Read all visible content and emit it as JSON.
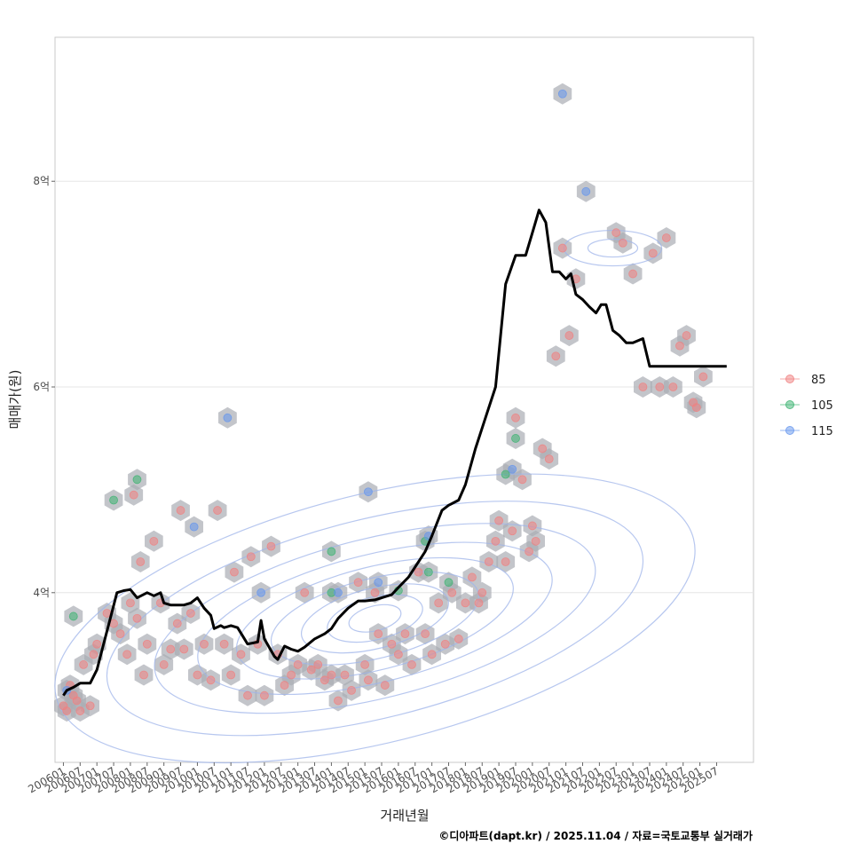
{
  "chart_data": {
    "type": "scatter",
    "title": "",
    "xlabel": "거래년월",
    "ylabel": "매매가(원)",
    "caption": "©디아파트(dapt.kr) / 2025.11.04 / 자료=국토교통부 실거래가",
    "xlim": [
      2005.75,
      2026.6
    ],
    "ylim": [
      2.35,
      9.4
    ],
    "y_ticks": [
      {
        "value": 4,
        "label": "4억"
      },
      {
        "value": 6,
        "label": "6억"
      },
      {
        "value": 8,
        "label": "8억"
      }
    ],
    "x_ticks": [
      "200601",
      "200607",
      "200701",
      "200707",
      "200801",
      "200807",
      "200901",
      "200907",
      "201001",
      "201007",
      "201101",
      "201107",
      "201201",
      "201207",
      "201301",
      "201307",
      "201401",
      "201407",
      "201501",
      "201507",
      "201601",
      "201607",
      "201701",
      "201707",
      "201801",
      "201807",
      "201901",
      "201907",
      "202001",
      "202007",
      "202101",
      "202107",
      "202201",
      "202207",
      "202301",
      "202307",
      "202401",
      "202407",
      "202501",
      "202507"
    ],
    "legend": {
      "placement": "right",
      "entries": [
        {
          "label": "85",
          "color": "#f08080"
        },
        {
          "label": "105",
          "color": "#3cb371"
        },
        {
          "label": "115",
          "color": "#6495ed"
        }
      ]
    },
    "colors": {
      "hexbin": "#a9adb3",
      "contour": "#9fb4ea",
      "trend": "#000000",
      "grid": "#e6e6e6",
      "panel_border": "#c8c8c8"
    },
    "trend_line": {
      "name": "moving median",
      "x": [
        2006.0,
        2006.1,
        2006.3,
        2006.5,
        2006.8,
        2007.0,
        2007.2,
        2007.4,
        2007.6,
        2007.8,
        2008.0,
        2008.2,
        2008.5,
        2008.7,
        2008.9,
        2009.0,
        2009.2,
        2009.4,
        2009.6,
        2009.8,
        2010.0,
        2010.2,
        2010.4,
        2010.5,
        2010.7,
        2010.8,
        2011.0,
        2011.2,
        2011.5,
        2011.8,
        2011.9,
        2012.0,
        2012.3,
        2012.4,
        2012.6,
        2012.8,
        2013.0,
        2013.2,
        2013.5,
        2013.8,
        2014.0,
        2014.2,
        2014.5,
        2014.8,
        2015.0,
        2015.3,
        2015.5,
        2015.8,
        2016.0,
        2016.3,
        2016.5,
        2016.8,
        2017.0,
        2017.3,
        2017.5,
        2017.8,
        2018.0,
        2018.3,
        2018.6,
        2018.9,
        2019.2,
        2019.5,
        2019.8,
        2020.0,
        2020.2,
        2020.4,
        2020.6,
        2020.8,
        2021.0,
        2021.15,
        2021.3,
        2021.5,
        2021.7,
        2021.9,
        2022.05,
        2022.2,
        2022.4,
        2022.6,
        2022.8,
        2023.0,
        2023.3,
        2023.5,
        2023.7,
        2023.9,
        2024.1,
        2024.3,
        2024.5,
        2024.8,
        2025.0,
        2025.2,
        2025.4,
        2025.6,
        2025.8
      ],
      "y": [
        3.0,
        3.05,
        3.08,
        3.12,
        3.12,
        3.25,
        3.5,
        3.75,
        4.0,
        4.02,
        4.03,
        3.95,
        4.0,
        3.97,
        4.0,
        3.9,
        3.88,
        3.88,
        3.88,
        3.9,
        3.95,
        3.85,
        3.78,
        3.65,
        3.68,
        3.66,
        3.68,
        3.66,
        3.5,
        3.52,
        3.73,
        3.55,
        3.38,
        3.35,
        3.48,
        3.45,
        3.43,
        3.47,
        3.55,
        3.6,
        3.65,
        3.75,
        3.85,
        3.92,
        3.92,
        3.93,
        3.95,
        3.98,
        4.05,
        4.15,
        4.25,
        4.4,
        4.55,
        4.8,
        4.85,
        4.9,
        5.05,
        5.4,
        5.7,
        6.0,
        7.0,
        7.28,
        7.28,
        7.5,
        7.72,
        7.6,
        7.12,
        7.12,
        7.05,
        7.1,
        6.9,
        6.85,
        6.78,
        6.72,
        6.8,
        6.8,
        6.55,
        6.5,
        6.43,
        6.43,
        6.47,
        6.2,
        6.2,
        6.2,
        6.2,
        6.2,
        6.2,
        6.2,
        6.2,
        6.2,
        6.2,
        6.2,
        6.2
      ]
    },
    "series": [
      {
        "name": "85",
        "points": [
          [
            2006.0,
            2.9
          ],
          [
            2006.1,
            2.85
          ],
          [
            2006.2,
            3.1
          ],
          [
            2006.3,
            3.0
          ],
          [
            2006.4,
            2.95
          ],
          [
            2006.5,
            2.85
          ],
          [
            2006.6,
            3.3
          ],
          [
            2006.8,
            2.9
          ],
          [
            2006.9,
            3.4
          ],
          [
            2007.0,
            3.5
          ],
          [
            2007.3,
            3.8
          ],
          [
            2007.5,
            3.7
          ],
          [
            2007.7,
            3.6
          ],
          [
            2007.9,
            3.4
          ],
          [
            2008.0,
            3.9
          ],
          [
            2008.1,
            4.95
          ],
          [
            2008.2,
            3.75
          ],
          [
            2008.3,
            4.3
          ],
          [
            2008.4,
            3.2
          ],
          [
            2008.5,
            3.5
          ],
          [
            2008.7,
            4.5
          ],
          [
            2008.9,
            3.9
          ],
          [
            2009.0,
            3.3
          ],
          [
            2009.2,
            3.45
          ],
          [
            2009.4,
            3.7
          ],
          [
            2009.5,
            4.8
          ],
          [
            2009.6,
            3.45
          ],
          [
            2009.8,
            3.8
          ],
          [
            2010.0,
            3.2
          ],
          [
            2010.2,
            3.5
          ],
          [
            2010.4,
            3.15
          ],
          [
            2010.6,
            4.8
          ],
          [
            2010.8,
            3.5
          ],
          [
            2011.0,
            3.2
          ],
          [
            2011.1,
            4.2
          ],
          [
            2011.3,
            3.4
          ],
          [
            2011.5,
            3.0
          ],
          [
            2011.6,
            4.35
          ],
          [
            2011.8,
            3.5
          ],
          [
            2012.0,
            3.0
          ],
          [
            2012.2,
            4.45
          ],
          [
            2012.4,
            3.4
          ],
          [
            2012.6,
            3.1
          ],
          [
            2012.8,
            3.2
          ],
          [
            2013.0,
            3.3
          ],
          [
            2013.2,
            4.0
          ],
          [
            2013.4,
            3.25
          ],
          [
            2013.6,
            3.3
          ],
          [
            2013.8,
            3.15
          ],
          [
            2014.0,
            3.2
          ],
          [
            2014.2,
            2.95
          ],
          [
            2014.4,
            3.2
          ],
          [
            2014.6,
            3.05
          ],
          [
            2014.8,
            4.1
          ],
          [
            2015.0,
            3.3
          ],
          [
            2015.1,
            3.15
          ],
          [
            2015.3,
            4.0
          ],
          [
            2015.4,
            3.6
          ],
          [
            2015.6,
            3.1
          ],
          [
            2015.8,
            3.5
          ],
          [
            2016.0,
            3.4
          ],
          [
            2016.2,
            3.6
          ],
          [
            2016.4,
            3.3
          ],
          [
            2016.6,
            4.2
          ],
          [
            2016.8,
            3.6
          ],
          [
            2017.0,
            3.4
          ],
          [
            2017.2,
            3.9
          ],
          [
            2017.4,
            3.5
          ],
          [
            2017.6,
            4.0
          ],
          [
            2017.8,
            3.55
          ],
          [
            2018.0,
            3.9
          ],
          [
            2018.2,
            4.15
          ],
          [
            2018.4,
            3.9
          ],
          [
            2018.5,
            4.0
          ],
          [
            2018.7,
            4.3
          ],
          [
            2018.9,
            4.5
          ],
          [
            2019.0,
            4.7
          ],
          [
            2019.2,
            4.3
          ],
          [
            2019.4,
            4.6
          ],
          [
            2019.5,
            5.7
          ],
          [
            2019.7,
            5.1
          ],
          [
            2019.9,
            4.4
          ],
          [
            2020.0,
            4.65
          ],
          [
            2020.1,
            4.5
          ],
          [
            2020.3,
            5.4
          ],
          [
            2020.5,
            5.3
          ],
          [
            2020.7,
            6.3
          ],
          [
            2020.9,
            7.35
          ],
          [
            2021.1,
            6.5
          ],
          [
            2021.3,
            7.05
          ],
          [
            2022.5,
            7.5
          ],
          [
            2022.7,
            7.4
          ],
          [
            2023.0,
            7.1
          ],
          [
            2023.3,
            6.0
          ],
          [
            2023.6,
            7.3
          ],
          [
            2023.8,
            6.0
          ],
          [
            2024.0,
            7.45
          ],
          [
            2024.2,
            6.0
          ],
          [
            2024.4,
            6.4
          ],
          [
            2024.6,
            6.5
          ],
          [
            2024.8,
            5.85
          ],
          [
            2024.9,
            5.8
          ],
          [
            2025.1,
            6.1
          ]
        ]
      },
      {
        "name": "105",
        "points": [
          [
            2006.3,
            3.77
          ],
          [
            2007.5,
            4.9
          ],
          [
            2008.2,
            5.1
          ],
          [
            2014.0,
            4.4
          ],
          [
            2014.0,
            4.0
          ],
          [
            2016.0,
            4.02
          ],
          [
            2016.8,
            4.5
          ],
          [
            2016.9,
            4.2
          ],
          [
            2017.5,
            4.1
          ],
          [
            2019.2,
            5.15
          ],
          [
            2019.5,
            5.5
          ]
        ]
      },
      {
        "name": "115",
        "points": [
          [
            2006.1,
            3.05
          ],
          [
            2009.9,
            4.64
          ],
          [
            2010.9,
            5.7
          ],
          [
            2011.9,
            4.0
          ],
          [
            2014.2,
            4.0
          ],
          [
            2015.1,
            4.98
          ],
          [
            2015.4,
            4.1
          ],
          [
            2016.9,
            4.55
          ],
          [
            2019.4,
            5.2
          ],
          [
            2020.9,
            8.85
          ],
          [
            2021.6,
            7.9
          ]
        ]
      }
    ]
  }
}
